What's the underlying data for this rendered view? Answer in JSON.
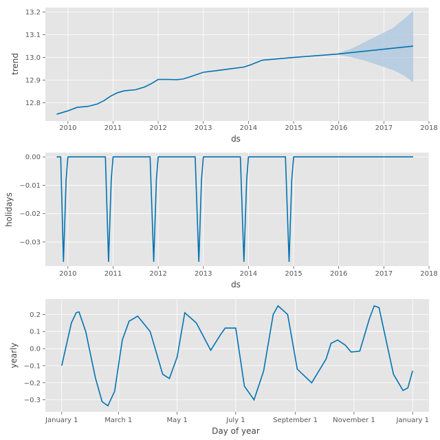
{
  "chart_data": [
    {
      "type": "line",
      "xlabel": "ds",
      "ylabel": "trend",
      "x_ticks": [
        "2010",
        "2011",
        "2012",
        "2013",
        "2014",
        "2015",
        "2016",
        "2017",
        "2018"
      ],
      "y_ticks": [
        "12.8",
        "12.9",
        "13.0",
        "13.1",
        "13.2"
      ],
      "xlim": [
        2009.5,
        2018
      ],
      "ylim": [
        12.72,
        13.22
      ],
      "grid": true,
      "colors": {
        "line": "#0072b2",
        "band": "#a9c6de"
      },
      "series": [
        {
          "x": [
            2009.75,
            2010.0,
            2010.2,
            2010.45,
            2010.65,
            2010.8,
            2010.95,
            2011.1,
            2011.25,
            2011.5,
            2011.7,
            2011.85,
            2012.0,
            2012.2,
            2012.4,
            2012.55,
            2012.75,
            2013.0,
            2013.3,
            2013.6,
            2013.9,
            2014.05,
            2014.3,
            2015.0,
            2015.96,
            2017.65
          ],
          "y": [
            12.75,
            12.765,
            12.78,
            12.785,
            12.795,
            12.81,
            12.83,
            12.845,
            12.853,
            12.858,
            12.87,
            12.885,
            12.903,
            12.903,
            12.902,
            12.905,
            12.918,
            12.935,
            12.942,
            12.95,
            12.958,
            12.968,
            12.988,
            13.0,
            13.015,
            13.05
          ]
        }
      ],
      "uncertainty": {
        "x": [
          2015.96,
          2016.3,
          2016.6,
          2016.9,
          2017.2,
          2017.45,
          2017.65
        ],
        "upper": [
          13.017,
          13.04,
          13.07,
          13.1,
          13.13,
          13.17,
          13.205
        ],
        "lower": [
          13.013,
          13.0,
          12.985,
          12.965,
          12.945,
          12.92,
          12.89
        ]
      }
    },
    {
      "type": "line",
      "xlabel": "ds",
      "ylabel": "holidays",
      "x_ticks": [
        "2010",
        "2011",
        "2012",
        "2013",
        "2014",
        "2015",
        "2016",
        "2017",
        "2018"
      ],
      "y_ticks": [
        "0.00",
        "−0.01",
        "−0.02",
        "−0.03"
      ],
      "xlim": [
        2009.5,
        2018
      ],
      "ylim": [
        -0.0385,
        0.0015
      ],
      "grid": true,
      "colors": {
        "line": "#0072b2"
      },
      "series": [
        {
          "x": [
            2009.75,
            2009.84,
            2009.9,
            2009.96,
            2010.0,
            2010.08,
            2010.83,
            2010.9,
            2010.96,
            2011.0,
            2011.82,
            2011.9,
            2011.96,
            2012.0,
            2012.82,
            2012.9,
            2012.96,
            2013.0,
            2013.82,
            2013.9,
            2013.96,
            2014.0,
            2014.82,
            2014.9,
            2014.96,
            2015.0,
            2017.65
          ],
          "y": [
            0.0,
            0.0,
            -0.037,
            -0.008,
            0.0,
            0.0,
            0.0,
            -0.037,
            -0.008,
            0.0,
            0.0,
            -0.037,
            -0.008,
            0.0,
            0.0,
            -0.037,
            -0.008,
            0.0,
            0.0,
            -0.037,
            -0.008,
            0.0,
            0.0,
            -0.037,
            -0.008,
            0.0,
            0.0
          ]
        }
      ]
    },
    {
      "type": "line",
      "xlabel": "Day of year",
      "ylabel": "yearly",
      "x_ticks": [
        "January 1",
        "March 1",
        "May 1",
        "July 1",
        "September 1",
        "November 1",
        "January 1"
      ],
      "x_tick_days": [
        0,
        59,
        120,
        181,
        243,
        304,
        365
      ],
      "y_ticks": [
        "0.2",
        "0.1",
        "0.0",
        "−0.1",
        "−0.2",
        "−0.3"
      ],
      "xlim": [
        -17,
        382
      ],
      "ylim": [
        -0.37,
        0.29
      ],
      "grid": true,
      "colors": {
        "line": "#0072b2"
      },
      "series": [
        {
          "x": [
            0,
            10,
            15,
            18,
            25,
            35,
            42,
            48,
            55,
            63,
            70,
            79,
            92,
            105,
            112,
            120,
            128,
            140,
            155,
            165,
            170,
            181,
            190,
            200,
            210,
            220,
            225,
            235,
            245,
            260,
            275,
            280,
            287,
            295,
            301,
            310,
            320,
            325,
            330,
            345,
            355,
            360,
            365
          ],
          "y": [
            -0.1,
            0.15,
            0.21,
            0.215,
            0.1,
            -0.17,
            -0.31,
            -0.335,
            -0.25,
            0.05,
            0.16,
            0.19,
            0.1,
            -0.15,
            -0.175,
            -0.05,
            0.21,
            0.15,
            -0.01,
            0.08,
            0.12,
            0.12,
            -0.22,
            -0.3,
            -0.13,
            0.2,
            0.25,
            0.2,
            -0.12,
            -0.2,
            -0.06,
            0.03,
            0.05,
            0.02,
            -0.02,
            -0.015,
            0.175,
            0.25,
            0.24,
            -0.15,
            -0.245,
            -0.23,
            -0.13
          ]
        }
      ]
    }
  ]
}
